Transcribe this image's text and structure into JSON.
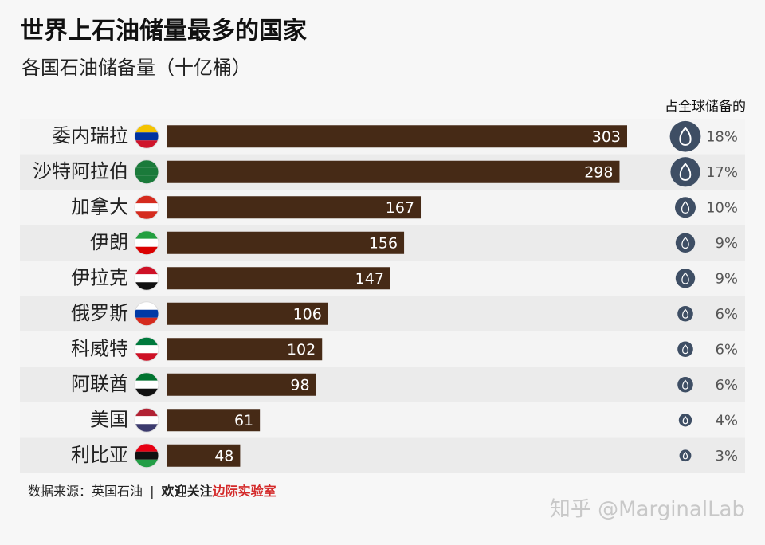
{
  "chart_data": {
    "type": "bar",
    "title": "世界上石油储量最多的国家",
    "subtitle": "各国石油储备量（十亿桶）",
    "categories": [
      "委内瑞拉",
      "沙特阿拉伯",
      "加拿大",
      "伊朗",
      "伊拉克",
      "俄罗斯",
      "科威特",
      "阿联酋",
      "美国",
      "利比亚"
    ],
    "values": [
      303,
      298,
      167,
      156,
      147,
      106,
      102,
      98,
      61,
      48
    ],
    "color": "#462a16",
    "shares": {
      "title": "占全球储备的",
      "color": "#3e4e64",
      "values": [
        18,
        17,
        10,
        9,
        9,
        6,
        6,
        6,
        4,
        3
      ],
      "value_labels": [
        "18%",
        "17%",
        "10%",
        "9%",
        "9%",
        "6%",
        "6%",
        "6%",
        "4%",
        "3%"
      ]
    },
    "footer": {
      "source": "数据来源：英国石油",
      "separator": "|",
      "follow": "欢迎关注",
      "brand": "边际实验室"
    },
    "watermark": "知乎 @MarginalLab"
  }
}
